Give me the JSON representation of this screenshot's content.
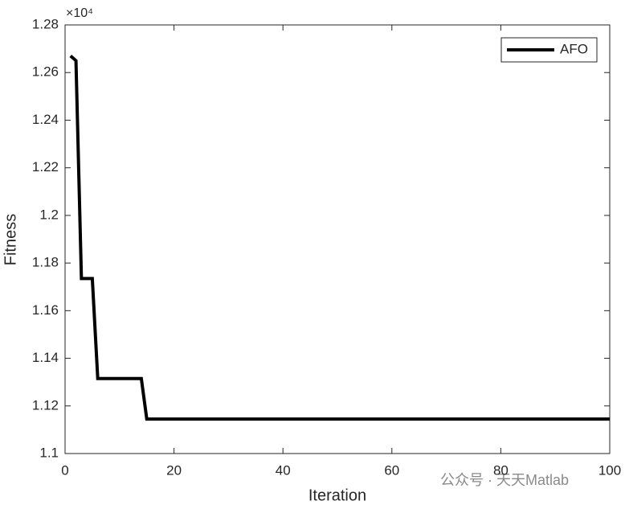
{
  "chart_data": {
    "type": "line",
    "x_label": "Iteration",
    "y_label": "Fitness",
    "y_exponent_label": "×10⁴",
    "x": [
      1,
      2,
      3,
      5,
      6,
      14,
      15,
      100
    ],
    "series": [
      {
        "name": "AFO",
        "color": "#000000",
        "values": [
          1.267,
          1.265,
          1.1735,
          1.1735,
          1.1315,
          1.1315,
          1.1145,
          1.1145
        ]
      }
    ],
    "xlim": [
      0,
      100
    ],
    "xticks": [
      0,
      20,
      40,
      60,
      80,
      100
    ],
    "ylim": [
      1.1,
      1.28
    ],
    "yticks": [
      1.1,
      1.12,
      1.14,
      1.16,
      1.18,
      1.2,
      1.22,
      1.24,
      1.26,
      1.28
    ],
    "grid": false,
    "legend": "northeast",
    "watermark": "公众号 · 天天Matlab"
  }
}
